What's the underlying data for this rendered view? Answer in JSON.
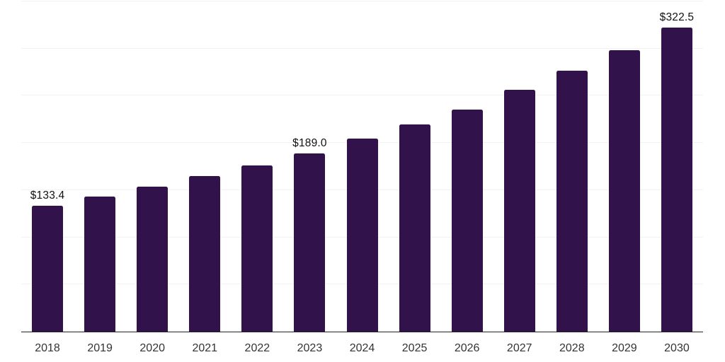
{
  "chart_data": {
    "type": "bar",
    "title": "",
    "xlabel": "",
    "ylabel": "",
    "categories": [
      "2018",
      "2019",
      "2020",
      "2021",
      "2022",
      "2023",
      "2024",
      "2025",
      "2026",
      "2027",
      "2028",
      "2029",
      "2030"
    ],
    "values": [
      133.4,
      143.2,
      153.6,
      164.6,
      176.1,
      189.0,
      204.3,
      219.4,
      235.5,
      256.0,
      276.4,
      298.0,
      322.5
    ],
    "labeled_values": [
      {
        "category": "2018",
        "text": "$133.4"
      },
      {
        "category": "2023",
        "text": "$189.0"
      },
      {
        "category": "2030",
        "text": "$322.5"
      }
    ],
    "ylim": [
      0,
      350
    ],
    "gridline_step": 50,
    "grid": "horizontal",
    "legend": "none",
    "y_tick_labels_visible": false,
    "bar_color": "#31124a",
    "axis_color": "#222222",
    "gridline_color": "#f2f2f2",
    "value_label_color": "#111111",
    "tick_label_color": "#333333"
  }
}
